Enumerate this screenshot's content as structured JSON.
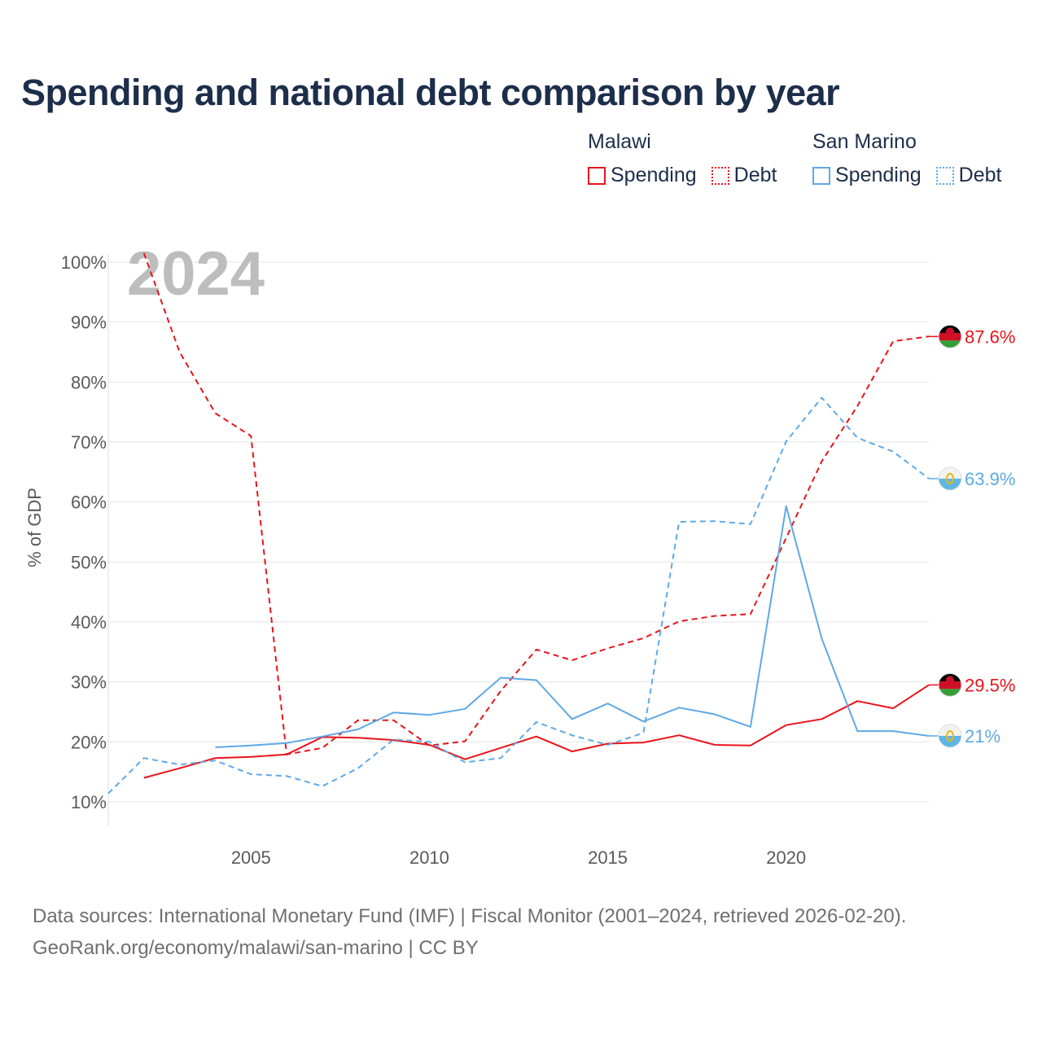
{
  "title": "Spending and national debt comparison by year",
  "legend": {
    "groups": [
      {
        "country": "Malawi",
        "color": "#e8141b",
        "items": [
          "Spending",
          "Debt"
        ]
      },
      {
        "country": "San Marino",
        "color": "#5ea9e6",
        "items": [
          "Spending",
          "Debt"
        ]
      }
    ]
  },
  "footer": {
    "line1": "Data sources: International Monetary Fund (IMF) | Fiscal Monitor (2001–2024, retrieved 2026-02-20).",
    "line2": "GeoRank.org/economy/malawi/san-marino | CC BY"
  },
  "chart_data": {
    "type": "line",
    "ylabel": "% of GDP",
    "year_label": "2024",
    "xlim": [
      2001,
      2024
    ],
    "ylim": [
      10,
      100
    ],
    "x_ticks": [
      2005,
      2010,
      2015,
      2020
    ],
    "y_ticks": [
      10,
      20,
      30,
      40,
      50,
      60,
      70,
      80,
      90,
      100
    ],
    "y_tick_labels": [
      "10%",
      "20%",
      "30%",
      "40%",
      "50%",
      "60%",
      "70%",
      "80%",
      "90%",
      "100%"
    ],
    "series": [
      {
        "name": "Malawi Debt",
        "country": "Malawi",
        "metric": "Debt",
        "style": "dashed",
        "color": "#e8141b",
        "end_label": "87.6%",
        "x": [
          2002,
          2003,
          2004,
          2005,
          2006,
          2007,
          2008,
          2009,
          2010,
          2011,
          2012,
          2013,
          2014,
          2015,
          2016,
          2017,
          2018,
          2019,
          2020,
          2021,
          2022,
          2023,
          2024
        ],
        "values": [
          101.5,
          85,
          74.8,
          71,
          17.9,
          19,
          23.6,
          23.6,
          19.4,
          20.1,
          28.5,
          35.4,
          33.6,
          35.6,
          37.3,
          40.1,
          41,
          41.3,
          54,
          66.8,
          76,
          86.8,
          87.6
        ]
      },
      {
        "name": "Malawi Spending",
        "country": "Malawi",
        "metric": "Spending",
        "style": "solid",
        "color": "#e8141b",
        "end_label": "29.5%",
        "x": [
          2002,
          2003,
          2004,
          2005,
          2006,
          2007,
          2008,
          2009,
          2010,
          2011,
          2012,
          2013,
          2014,
          2015,
          2016,
          2017,
          2018,
          2019,
          2020,
          2021,
          2022,
          2023,
          2024
        ],
        "values": [
          14,
          15.6,
          17.3,
          17.5,
          17.9,
          20.8,
          20.7,
          20.3,
          19.5,
          17.1,
          19,
          20.9,
          18.4,
          19.7,
          19.9,
          21.1,
          19.5,
          19.4,
          22.8,
          23.8,
          26.8,
          25.6,
          29.5
        ]
      },
      {
        "name": "San Marino Debt",
        "country": "San Marino",
        "metric": "Debt",
        "style": "dashed",
        "color": "#5ea9e6",
        "end_label": "63.9%",
        "x": [
          2001,
          2002,
          2003,
          2004,
          2005,
          2006,
          2007,
          2008,
          2009,
          2010,
          2011,
          2012,
          2013,
          2014,
          2015,
          2016,
          2017,
          2018,
          2019,
          2020,
          2021,
          2022,
          2023,
          2024
        ],
        "values": [
          11.4,
          17.3,
          16.2,
          16.9,
          14.6,
          14.3,
          12.6,
          15.6,
          20.4,
          20,
          16.6,
          17.3,
          23.3,
          21.1,
          19.5,
          21.5,
          56.7,
          56.8,
          56.3,
          70.1,
          77.4,
          70.7,
          68.4,
          63.9
        ]
      },
      {
        "name": "San Marino Spending",
        "country": "San Marino",
        "metric": "Spending",
        "style": "solid",
        "color": "#5ea9e6",
        "end_label": "21%",
        "x": [
          2004,
          2005,
          2006,
          2007,
          2008,
          2009,
          2010,
          2011,
          2012,
          2013,
          2014,
          2015,
          2016,
          2017,
          2018,
          2019,
          2020,
          2021,
          2022,
          2023,
          2024
        ],
        "values": [
          19.1,
          19.4,
          19.8,
          20.9,
          22.1,
          24.9,
          24.5,
          25.5,
          30.7,
          30.3,
          23.8,
          26.4,
          23.4,
          25.7,
          24.6,
          22.5,
          59.3,
          37.2,
          21.8,
          21.8,
          21
        ]
      }
    ]
  }
}
